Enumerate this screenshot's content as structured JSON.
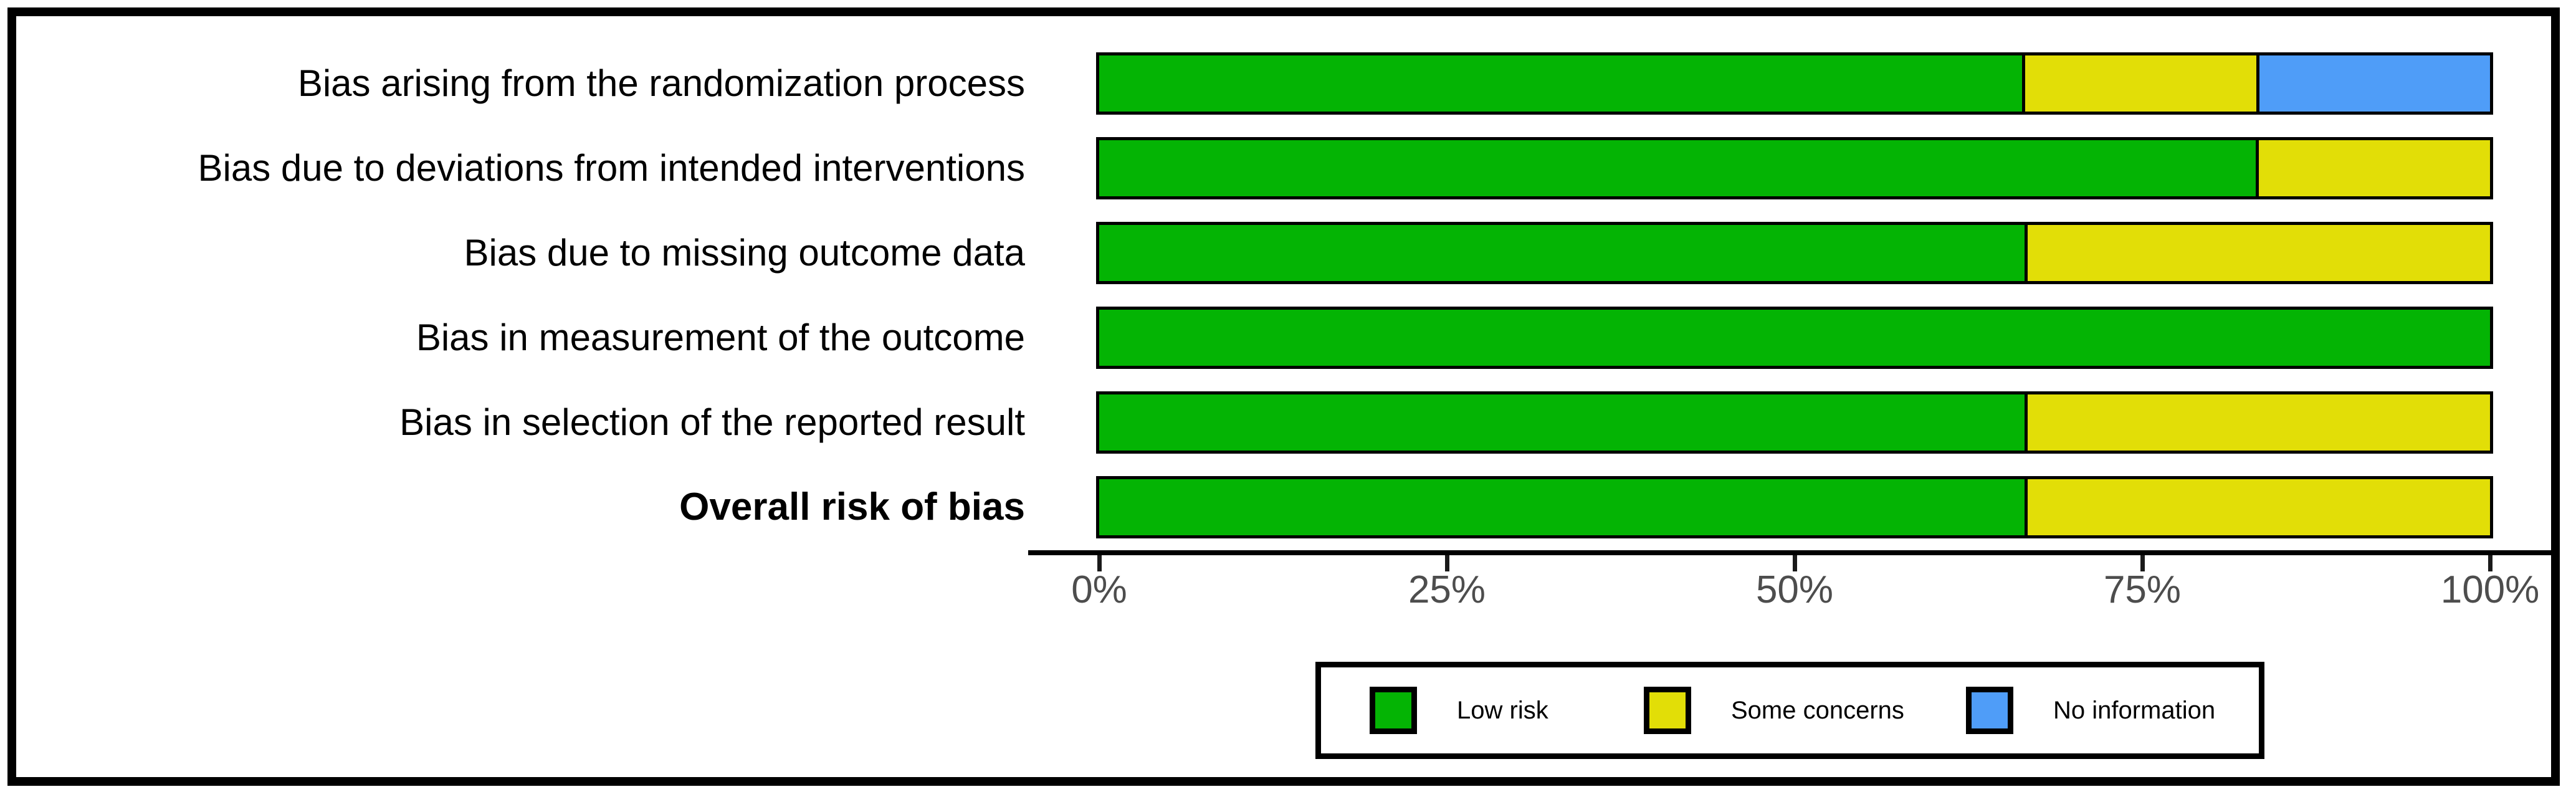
{
  "chart_data": {
    "type": "bar",
    "orientation": "horizontal_stacked",
    "title": "",
    "xlabel": "",
    "ylabel": "",
    "categories": [
      "Bias arising from the randomization process",
      "Bias due to deviations from intended interventions",
      "Bias due to missing outcome data",
      "Bias in measurement of the outcome",
      "Bias in selection of the reported result",
      "Overall risk of bias"
    ],
    "bold_category_index": 5,
    "series": [
      {
        "name": "Low risk",
        "color_key": "low_risk",
        "values": [
          66.67,
          83.33,
          66.67,
          100,
          66.67,
          66.67
        ]
      },
      {
        "name": "Some concerns",
        "color_key": "some_concerns",
        "values": [
          16.67,
          16.67,
          33.33,
          0,
          33.33,
          33.33
        ]
      },
      {
        "name": "No information",
        "color_key": "no_information",
        "values": [
          16.66,
          0,
          0,
          0,
          0,
          0
        ]
      }
    ],
    "x_axis": {
      "range": [
        0,
        100
      ],
      "ticks": [
        "0%",
        "25%",
        "50%",
        "75%",
        "100%"
      ],
      "grid": false
    },
    "legend": {
      "position": "bottom",
      "entries": [
        {
          "label": "Low risk",
          "color_key": "low_risk"
        },
        {
          "label": "Some concerns",
          "color_key": "some_concerns"
        },
        {
          "label": "No information",
          "color_key": "no_information"
        }
      ]
    }
  },
  "colors": {
    "low_risk": "#04b404",
    "some_concerns": "#e2de07",
    "no_information": "#4f9df8",
    "bar_border": "#000000",
    "axis_text": "#4d4d4d",
    "label_text": "#000000"
  }
}
